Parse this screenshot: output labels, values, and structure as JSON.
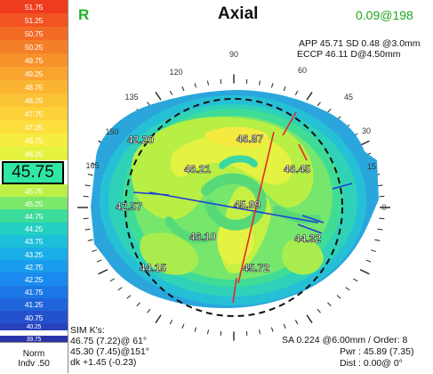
{
  "scale": {
    "steps": [
      {
        "label": "51.75",
        "color": "#f03c1e"
      },
      {
        "label": "51.25",
        "color": "#f25322"
      },
      {
        "label": "50.75",
        "color": "#f36a25"
      },
      {
        "label": "50.25",
        "color": "#f57f28"
      },
      {
        "label": "49.75",
        "color": "#f7922b"
      },
      {
        "label": "49.25",
        "color": "#f9a42e"
      },
      {
        "label": "48.75",
        "color": "#fab432"
      },
      {
        "label": "48.25",
        "color": "#fbc336"
      },
      {
        "label": "47.75",
        "color": "#fcd13a"
      },
      {
        "label": "47.25",
        "color": "#fcde3d"
      },
      {
        "label": "46.75",
        "color": "#f7ec40"
      },
      {
        "label": "46.25",
        "color": "#e5f242"
      },
      {
        "label": "45.75",
        "color": "#bdf046"
      },
      {
        "label": "45.25",
        "color": "#7ce86a"
      },
      {
        "label": "44.75",
        "color": "#3cdc9a"
      },
      {
        "label": "44.25",
        "color": "#22cfc0"
      },
      {
        "label": "43.75",
        "color": "#1cc0d8"
      },
      {
        "label": "43.25",
        "color": "#1aaee6"
      },
      {
        "label": "42.75",
        "color": "#1a9cec"
      },
      {
        "label": "42.25",
        "color": "#1a8aee"
      },
      {
        "label": "41.75",
        "color": "#1c77e6"
      },
      {
        "label": "41.25",
        "color": "#1f64da"
      },
      {
        "label": "40.75",
        "color": "#2352cc"
      },
      {
        "label": "40.25",
        "color": "#2742bb"
      },
      {
        "label": "39.75",
        "color": "#2b33a8"
      }
    ],
    "current_value": "45.75",
    "footer_line1": "Norm",
    "footer_line2": "Indv .50"
  },
  "header": {
    "eye": "R",
    "map_type": "Axial",
    "corner_value": "0.09@198"
  },
  "top_right": {
    "line1": "APP 45.71 SD 0.48  @3.0mm",
    "line2": "ECCP 46.11 D@4.50mm"
  },
  "dial_labels": [
    "90",
    "60",
    "30",
    "0",
    "150",
    "120",
    "135",
    "165",
    "45",
    "15"
  ],
  "map_values": [
    "46.87",
    "42.20",
    "46.21",
    "46.45",
    "42.57",
    "45.99",
    "46.10",
    "44.32",
    "44.15",
    "45.72"
  ],
  "sim_k": {
    "title": "SIM K's:",
    "line1": "46.75 (7.22)@ 61°",
    "line2": "45.30 (7.45)@151°",
    "line3": "dk +1.45 (-0.23)"
  },
  "bottom_right": {
    "line1": "SA  0.224 @6.00mm / Order: 8",
    "line2": "Pwr :  45.89 (7.35)",
    "line3": "Dist :  0.00@  0°"
  },
  "colors": {
    "eye": "#24b324",
    "corner_value": "#1fa51f",
    "axis_red": "#e8262c",
    "axis_blue": "#1e3ed8"
  }
}
